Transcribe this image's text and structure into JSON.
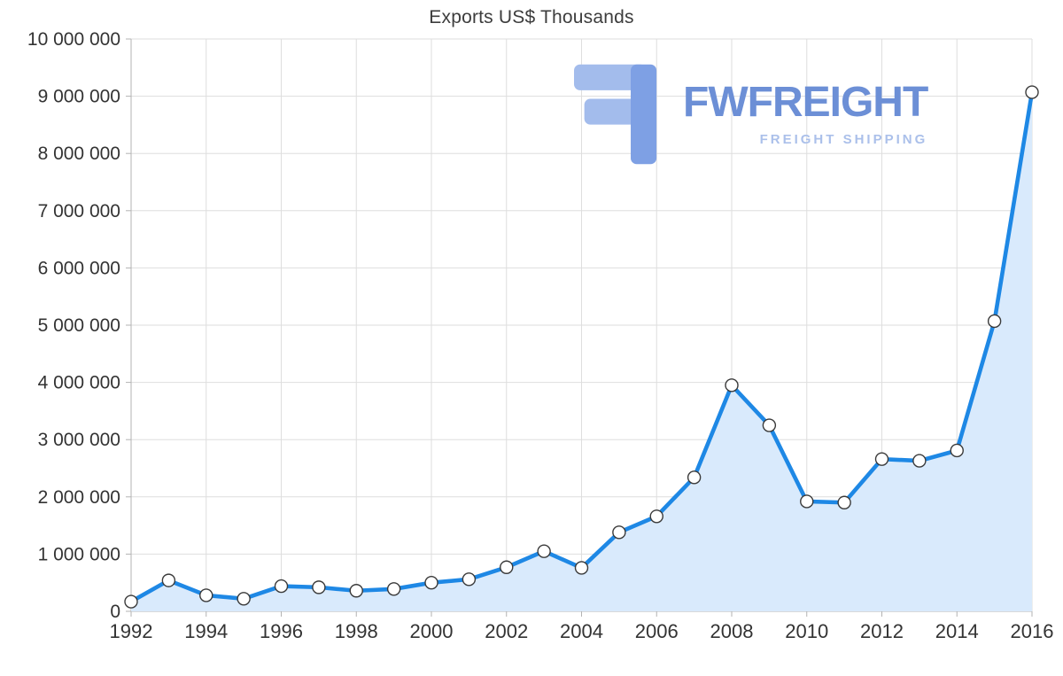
{
  "chart_data": {
    "type": "area",
    "title": "Exports US$ Thousands",
    "xlabel": "",
    "ylabel": "",
    "x": [
      1992,
      1993,
      1994,
      1995,
      1996,
      1997,
      1998,
      1999,
      2000,
      2001,
      2002,
      2003,
      2004,
      2005,
      2006,
      2007,
      2008,
      2009,
      2010,
      2011,
      2012,
      2013,
      2014,
      2015,
      2016
    ],
    "values": [
      170000,
      540000,
      280000,
      220000,
      440000,
      420000,
      360000,
      390000,
      500000,
      560000,
      770000,
      1050000,
      760000,
      1380000,
      1660000,
      2340000,
      3950000,
      3250000,
      1920000,
      1900000,
      2660000,
      2630000,
      2810000,
      5070000,
      9070000
    ],
    "ylim": [
      0,
      10000000
    ],
    "ytick_step": 1000000,
    "xtick_step": 2,
    "grid": true,
    "legend": false,
    "y_tick_labels": [
      "0",
      "1 000 000",
      "2 000 000",
      "3 000 000",
      "4 000 000",
      "5 000 000",
      "6 000 000",
      "7 000 000",
      "8 000 000",
      "9 000 000",
      "10 000 000"
    ],
    "x_tick_labels": [
      "1992",
      "1994",
      "1996",
      "1998",
      "2000",
      "2002",
      "2004",
      "2006",
      "2008",
      "2010",
      "2012",
      "2014",
      "2016"
    ],
    "colors": {
      "line": "#1e88e5",
      "fill": "#d9eafc",
      "grid": "#dedede",
      "axis": "#b3b3b3",
      "tick_text": "#333333",
      "marker_fill": "#ffffff",
      "marker_stroke": "#3a3a3a"
    }
  },
  "watermark": {
    "brand": "FWFREIGHT",
    "tagline": "FREIGHT SHIPPING",
    "brand_color": "#6c8fd6",
    "tagline_color": "#abc0ea",
    "logo_color_light": "#a3bcec",
    "logo_color_dark": "#7ea0e4"
  }
}
